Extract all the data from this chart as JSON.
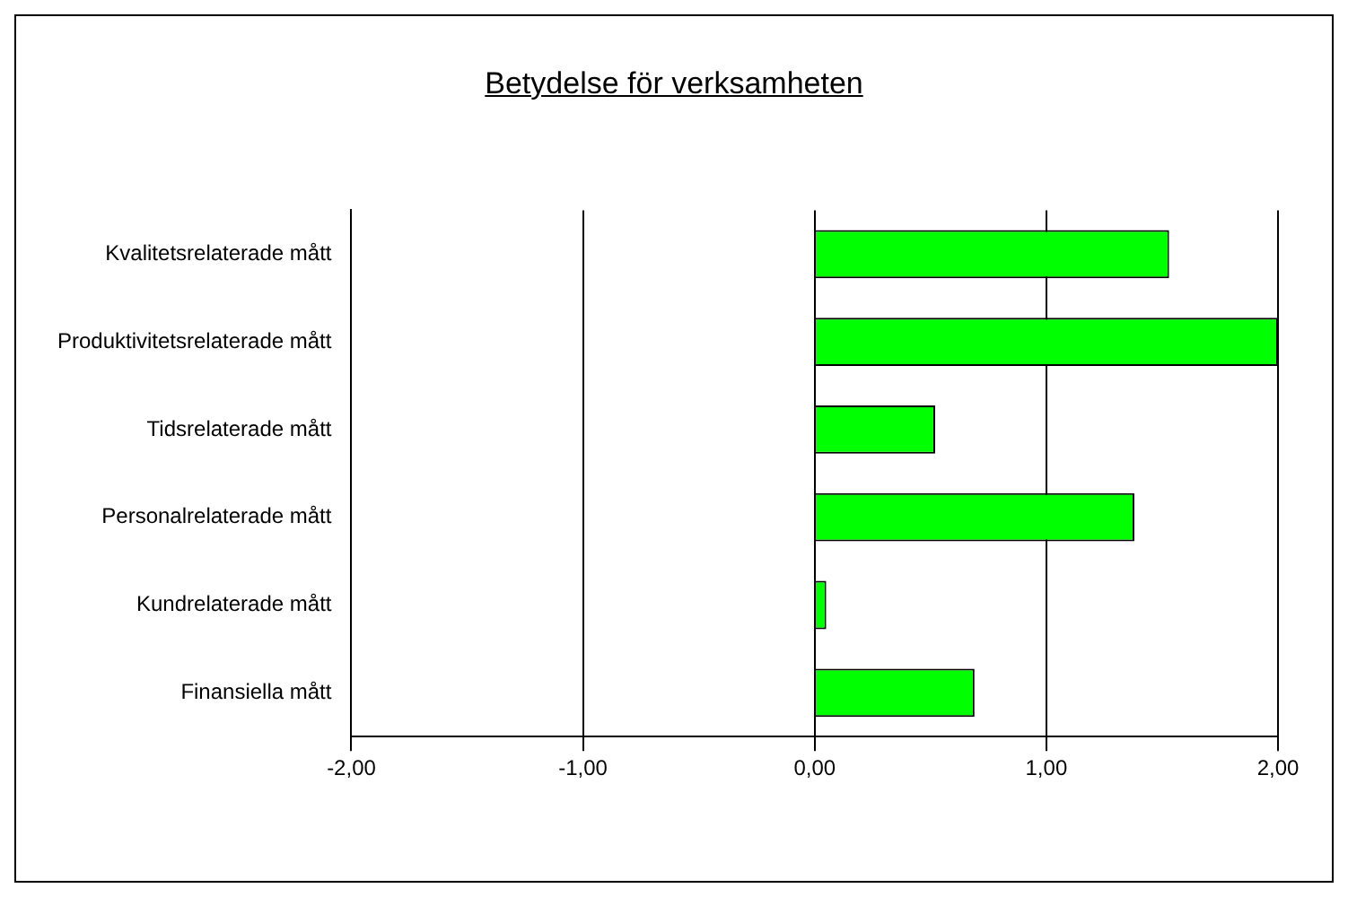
{
  "chart_data": {
    "type": "bar",
    "title": "Betydelse för verksamheten",
    "orientation": "horizontal",
    "categories": [
      "Kvalitetsrelaterade mått",
      "Produktivitetsrelaterade mått",
      "Tidsrelaterade mått",
      "Personalrelaterade mått",
      "Kundrelaterade mått",
      "Finansiella mått"
    ],
    "values": [
      1.53,
      2,
      0.52,
      1.38,
      0.05,
      0.69
    ],
    "color": "#00ff00",
    "xlim": [
      -2,
      2
    ],
    "xticks": [
      {
        "value": -2,
        "label": "-2,00"
      },
      {
        "value": -1,
        "label": "-1,00"
      },
      {
        "value": 0,
        "label": "0,00"
      },
      {
        "value": 1,
        "label": "1,00"
      },
      {
        "value": 2,
        "label": "2,00"
      }
    ],
    "grid": "x"
  }
}
